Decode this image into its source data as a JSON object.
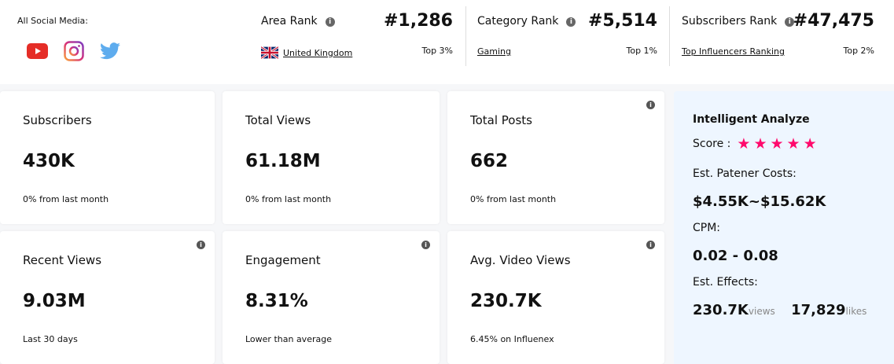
{
  "social": {
    "label": "All Social Media:",
    "icons": [
      "youtube-icon",
      "instagram-icon",
      "twitter-icon"
    ]
  },
  "ranks": [
    {
      "label": "Area Rank",
      "value": "#1,286",
      "link": "United Kingdom",
      "top": "Top 3%"
    },
    {
      "label": "Category Rank",
      "value": "#5,514",
      "link": "Gaming",
      "top": "Top 1%"
    },
    {
      "label": "Subscribers Rank",
      "value": "#47,475",
      "link": "Top Influencers Ranking",
      "top": "Top 2%"
    }
  ],
  "cards": [
    {
      "title": "Subscribers",
      "value": "430K",
      "sub": "0% from last month"
    },
    {
      "title": "Total Views",
      "value": "61.18M",
      "sub": "0% from last month"
    },
    {
      "title": "Total Posts",
      "value": "662",
      "sub": "0% from last month"
    },
    {
      "title": "Recent Views",
      "value": "9.03M",
      "sub": "Last 30 days"
    },
    {
      "title": "Engagement",
      "value": "8.31%",
      "sub": "Lower than average"
    },
    {
      "title": "Avg. Video Views",
      "value": "230.7K",
      "sub": "6.45% on Influenex"
    }
  ],
  "analyze": {
    "title": "Intelligent Analyze",
    "score_label": "Score :",
    "score": 5,
    "score_max": 5,
    "costs_label": "Est. Patener Costs:",
    "costs": "$4.55K~$15.62K",
    "cpm_label": "CPM:",
    "cpm": "0.02 - 0.08",
    "effects_label": "Est. Effects:",
    "views": "230.7K",
    "views_unit": "views",
    "likes": "17,829",
    "likes_unit": "likes"
  },
  "colors": {
    "star": "#ff0a6c",
    "panel": "#eef6ff"
  }
}
